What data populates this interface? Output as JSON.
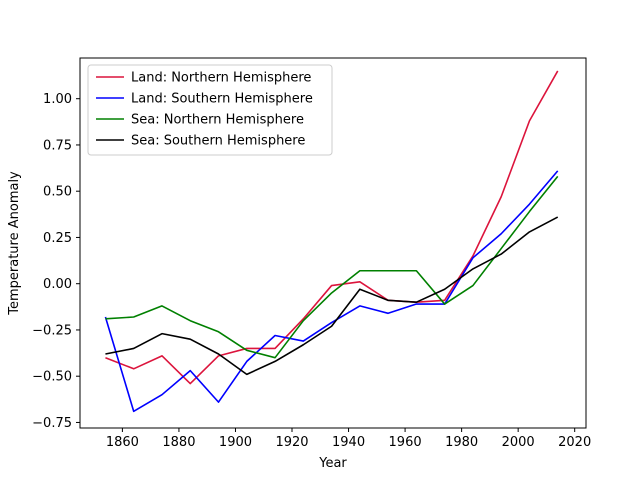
{
  "chart_data": {
    "type": "line",
    "title": "",
    "xlabel": "Year",
    "ylabel": "Temperature Anomaly",
    "xlim": [
      1845,
      2024
    ],
    "ylim": [
      -0.78,
      1.22
    ],
    "xticks": [
      1860,
      1880,
      1900,
      1920,
      1940,
      1960,
      1980,
      2000,
      2020
    ],
    "yticks": [
      -0.75,
      -0.5,
      -0.25,
      0.0,
      0.25,
      0.5,
      0.75,
      1.0
    ],
    "ytick_labels": [
      "−0.75",
      "−0.50",
      "−0.25",
      "0.00",
      "0.25",
      "0.50",
      "0.75",
      "1.00"
    ],
    "grid": false,
    "legend_position": "top-left",
    "x": [
      1854,
      1864,
      1874,
      1884,
      1894,
      1904,
      1914,
      1924,
      1934,
      1944,
      1954,
      1964,
      1974,
      1984,
      1994,
      2004,
      2014
    ],
    "series": [
      {
        "name": "Land: Northern Hemisphere",
        "color": "#dc143c",
        "values": [
          -0.4,
          -0.46,
          -0.39,
          -0.54,
          -0.39,
          -0.35,
          -0.35,
          -0.19,
          -0.01,
          0.01,
          -0.09,
          -0.1,
          -0.09,
          0.15,
          0.47,
          0.88,
          1.15
        ]
      },
      {
        "name": "Land: Southern Hemisphere",
        "color": "#0000ff",
        "values": [
          -0.18,
          -0.69,
          -0.6,
          -0.47,
          -0.64,
          -0.42,
          -0.28,
          -0.31,
          -0.21,
          -0.12,
          -0.16,
          -0.11,
          -0.11,
          0.14,
          0.27,
          0.43,
          0.61
        ]
      },
      {
        "name": "Sea: Northern Hemisphere",
        "color": "#008000",
        "values": [
          -0.19,
          -0.18,
          -0.12,
          -0.2,
          -0.26,
          -0.36,
          -0.4,
          -0.2,
          -0.05,
          0.07,
          0.07,
          0.07,
          -0.11,
          -0.01,
          0.19,
          0.39,
          0.58
        ]
      },
      {
        "name": "Sea: Southern Hemisphere",
        "color": "#000000",
        "values": [
          -0.38,
          -0.35,
          -0.27,
          -0.3,
          -0.38,
          -0.49,
          -0.42,
          -0.33,
          -0.23,
          -0.03,
          -0.09,
          -0.1,
          -0.03,
          0.08,
          0.16,
          0.28,
          0.36
        ]
      }
    ]
  }
}
